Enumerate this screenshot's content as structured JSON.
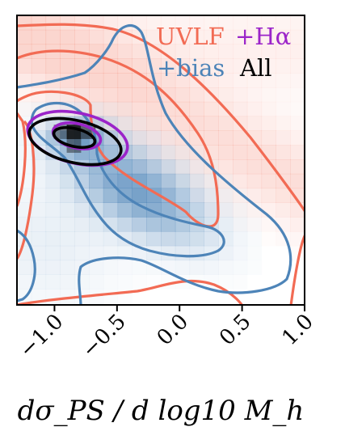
{
  "chart_data": {
    "type": "contour",
    "xlabel": "dσ_PS / d log10 M_h",
    "xlim": [
      -1.3,
      1.0
    ],
    "x_ticks": [
      -1.0,
      -0.5,
      0.0,
      0.5,
      1.0
    ],
    "x_tick_labels": [
      "−1.0",
      "−0.5",
      "0.0",
      "0.5",
      "1.0"
    ],
    "legend_position": "top-right",
    "legend": [
      {
        "label": "UVLF",
        "color": "#f26b54"
      },
      {
        "label": "+Hα",
        "color": "#9b24c9"
      },
      {
        "label": "+bias",
        "color": "#4d84b8"
      },
      {
        "label": "All",
        "color": "#000000"
      }
    ],
    "series": [
      {
        "name": "UVLF",
        "color": "#f26b54"
      },
      {
        "name": "+bias",
        "color": "#4d84b8"
      },
      {
        "name": "+Hα",
        "color": "#9b24c9"
      },
      {
        "name": "All",
        "color": "#000000"
      }
    ],
    "peak_x": -0.78
  },
  "colors": {
    "uvlf": "#f26b54",
    "halpha": "#9b24c9",
    "bias": "#4d84b8",
    "all": "#000000"
  }
}
